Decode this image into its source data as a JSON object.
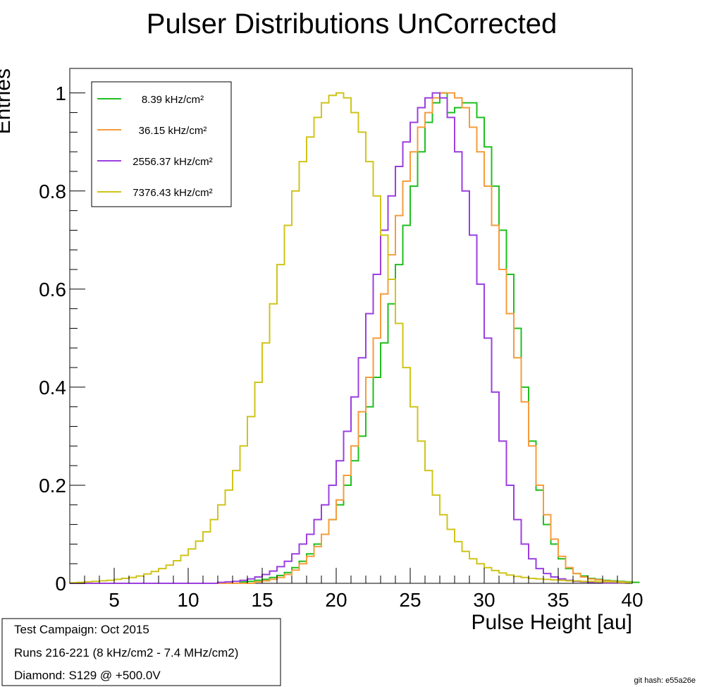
{
  "chart_data": {
    "type": "line",
    "title": "Pulser Distributions UnCorrected",
    "xlabel": "Pulse Height [au]",
    "ylabel": "Entries",
    "xlim": [
      2,
      40
    ],
    "ylim": [
      0,
      1.05
    ],
    "xticks": [
      5,
      10,
      15,
      20,
      25,
      30,
      35,
      40
    ],
    "yticks": [
      0,
      0.2,
      0.4,
      0.6,
      0.8,
      1
    ],
    "ytick_labels": [
      "0",
      "0.2",
      "0.4",
      "0.6",
      "0.8",
      "1"
    ],
    "grid": false,
    "legend_position": "top-left",
    "step": true,
    "bin_width": 0.5,
    "bin_start": 2,
    "series": [
      {
        "name": "8.39 kHz/cm²",
        "color": "#1fbf1f",
        "values": [
          0,
          0,
          0,
          0,
          0,
          0,
          0,
          0,
          0,
          0,
          0,
          0,
          0,
          0,
          0,
          0,
          0,
          0,
          0,
          0,
          0,
          0,
          0,
          0.003,
          0.004,
          0.006,
          0.008,
          0.012,
          0.016,
          0.022,
          0.032,
          0.045,
          0.06,
          0.08,
          0.1,
          0.13,
          0.16,
          0.2,
          0.25,
          0.3,
          0.36,
          0.42,
          0.49,
          0.57,
          0.65,
          0.73,
          0.81,
          0.88,
          0.94,
          0.98,
          1.0,
          0.96,
          0.97,
          0.98,
          0.98,
          0.95,
          0.89,
          0.81,
          0.72,
          0.63,
          0.52,
          0.4,
          0.29,
          0.19,
          0.12,
          0.08,
          0.05,
          0.03,
          0.02,
          0.015,
          0.01,
          0.008,
          0.006,
          0.005,
          0.004,
          0.003,
          0.002
        ]
      },
      {
        "name": "36.15 kHz/cm²",
        "color": "#f59c3c",
        "values": [
          0,
          0,
          0,
          0,
          0,
          0,
          0,
          0,
          0,
          0,
          0,
          0,
          0,
          0,
          0,
          0,
          0,
          0,
          0,
          0,
          0,
          0,
          0,
          0,
          0,
          0.003,
          0.005,
          0.008,
          0.012,
          0.018,
          0.027,
          0.04,
          0.055,
          0.075,
          0.1,
          0.13,
          0.17,
          0.22,
          0.28,
          0.35,
          0.42,
          0.5,
          0.59,
          0.67,
          0.75,
          0.82,
          0.88,
          0.93,
          0.96,
          0.99,
          1.0,
          1.0,
          0.99,
          0.97,
          0.93,
          0.88,
          0.81,
          0.73,
          0.64,
          0.55,
          0.46,
          0.37,
          0.28,
          0.2,
          0.14,
          0.09,
          0.055,
          0.032,
          0.02,
          0.013,
          0.009,
          0.007,
          0.005,
          0.004,
          0.003,
          0.002
        ]
      },
      {
        "name": "2556.37 kHz/cm²",
        "color": "#9b3fe0",
        "values": [
          0,
          0,
          0,
          0,
          0,
          0,
          0,
          0,
          0,
          0,
          0,
          0,
          0,
          0,
          0,
          0,
          0,
          0,
          0,
          0,
          0.002,
          0.003,
          0.004,
          0.006,
          0.009,
          0.013,
          0.018,
          0.025,
          0.034,
          0.045,
          0.06,
          0.08,
          0.1,
          0.13,
          0.16,
          0.2,
          0.25,
          0.31,
          0.38,
          0.46,
          0.55,
          0.63,
          0.72,
          0.79,
          0.85,
          0.9,
          0.94,
          0.97,
          0.99,
          1.0,
          0.99,
          0.95,
          0.88,
          0.8,
          0.71,
          0.61,
          0.5,
          0.39,
          0.29,
          0.2,
          0.13,
          0.08,
          0.05,
          0.03,
          0.02,
          0.013,
          0.009,
          0.006,
          0.004,
          0.003,
          0.002,
          0.002,
          0.001,
          0.001,
          0.001
        ]
      },
      {
        "name": "7376.43 kHz/cm²",
        "color": "#cfc41a",
        "values": [
          0.001,
          0.002,
          0.003,
          0.004,
          0.005,
          0.006,
          0.008,
          0.01,
          0.012,
          0.015,
          0.019,
          0.024,
          0.03,
          0.037,
          0.046,
          0.057,
          0.07,
          0.086,
          0.105,
          0.13,
          0.16,
          0.19,
          0.23,
          0.28,
          0.34,
          0.41,
          0.49,
          0.57,
          0.65,
          0.73,
          0.8,
          0.86,
          0.91,
          0.95,
          0.98,
          0.995,
          1.0,
          0.99,
          0.96,
          0.92,
          0.86,
          0.79,
          0.71,
          0.62,
          0.53,
          0.44,
          0.36,
          0.29,
          0.23,
          0.18,
          0.14,
          0.11,
          0.085,
          0.065,
          0.05,
          0.04,
          0.032,
          0.026,
          0.021,
          0.017,
          0.014,
          0.012,
          0.01,
          0.009,
          0.008,
          0.007,
          0.006,
          0.005,
          0.005,
          0.004,
          0.004,
          0.003,
          0.003,
          0.003,
          0.002,
          0.002
        ]
      }
    ]
  },
  "info_box": {
    "lines": [
      "Test Campaign: Oct 2015",
      "Runs 216-221 (8 kHz/cm2 - 7.4 MHz/cm2)",
      "Diamond: S129 @ +500.0V"
    ]
  },
  "footer": {
    "git_hash": "git hash: e55a26e"
  }
}
